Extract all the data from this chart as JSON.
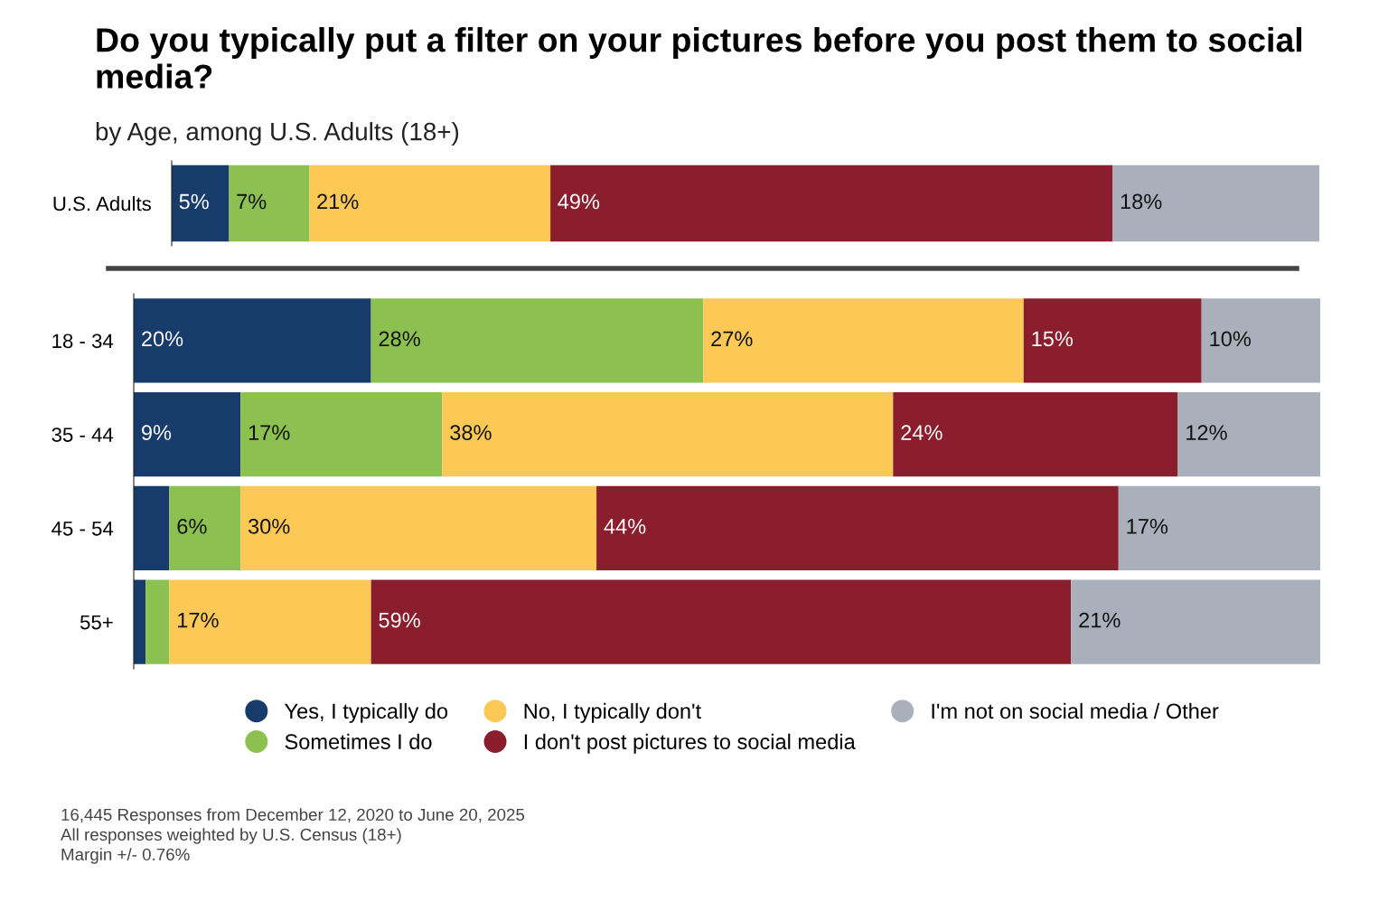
{
  "chart_data": [
    {
      "type": "bar",
      "orientation": "horizontal",
      "stacked": true,
      "title": "Do you typically put a filter on your pictures before you post them to social media?",
      "subtitle": "by Age, among U.S. Adults (18+)",
      "categories": [
        "U.S. Adults"
      ],
      "xlim": [
        0,
        100
      ],
      "tick_labels": "y",
      "grid": false,
      "legend": false,
      "series": [
        {
          "color": "#173c6b",
          "values": [
            5
          ],
          "value_labels": [
            "5%"
          ]
        },
        {
          "color": "#8cc152",
          "values": [
            7
          ],
          "value_labels": [
            "7%"
          ]
        },
        {
          "color": "#fdc956",
          "values": [
            21
          ],
          "value_labels": [
            "21%"
          ]
        },
        {
          "color": "#8b1e2c",
          "values": [
            49
          ],
          "value_labels": [
            "49%"
          ]
        },
        {
          "color": "#aab0bb",
          "values": [
            18
          ],
          "value_labels": [
            "18%"
          ]
        }
      ]
    },
    {
      "type": "bar",
      "orientation": "horizontal",
      "stacked": true,
      "categories": [
        "18 - 34",
        "35 - 44",
        "45 - 54",
        "55+"
      ],
      "xlim": [
        0,
        100
      ],
      "tick_labels": "y",
      "grid": false,
      "legend": "bottom",
      "annotations": [
        "16,445 Responses from December 12, 2020 to June 20, 2025",
        "All responses weighted by U.S. Census (18+)",
        "Margin +/- 0.76%"
      ],
      "series": [
        {
          "name": "Yes, I typically do",
          "color": "#173c6b",
          "values": [
            20,
            9,
            3,
            1
          ],
          "value_labels": [
            "20%",
            "9%",
            null,
            null
          ]
        },
        {
          "name": "Sometimes I do",
          "color": "#8cc152",
          "values": [
            28,
            17,
            6,
            2
          ],
          "value_labels": [
            "28%",
            "17%",
            "6%",
            null
          ]
        },
        {
          "name": "No, I typically don't",
          "color": "#fdc956",
          "values": [
            27,
            38,
            30,
            17
          ],
          "value_labels": [
            "27%",
            "38%",
            "30%",
            "17%"
          ]
        },
        {
          "name": "I don't post pictures to social media",
          "color": "#8b1e2c",
          "values": [
            15,
            24,
            44,
            59
          ],
          "value_labels": [
            "15%",
            "24%",
            "44%",
            "59%"
          ]
        },
        {
          "name": "I'm not on social media / Other",
          "color": "#aab0bb",
          "values": [
            10,
            12,
            17,
            21
          ],
          "value_labels": [
            "10%",
            "12%",
            "17%",
            "21%"
          ]
        }
      ]
    }
  ]
}
